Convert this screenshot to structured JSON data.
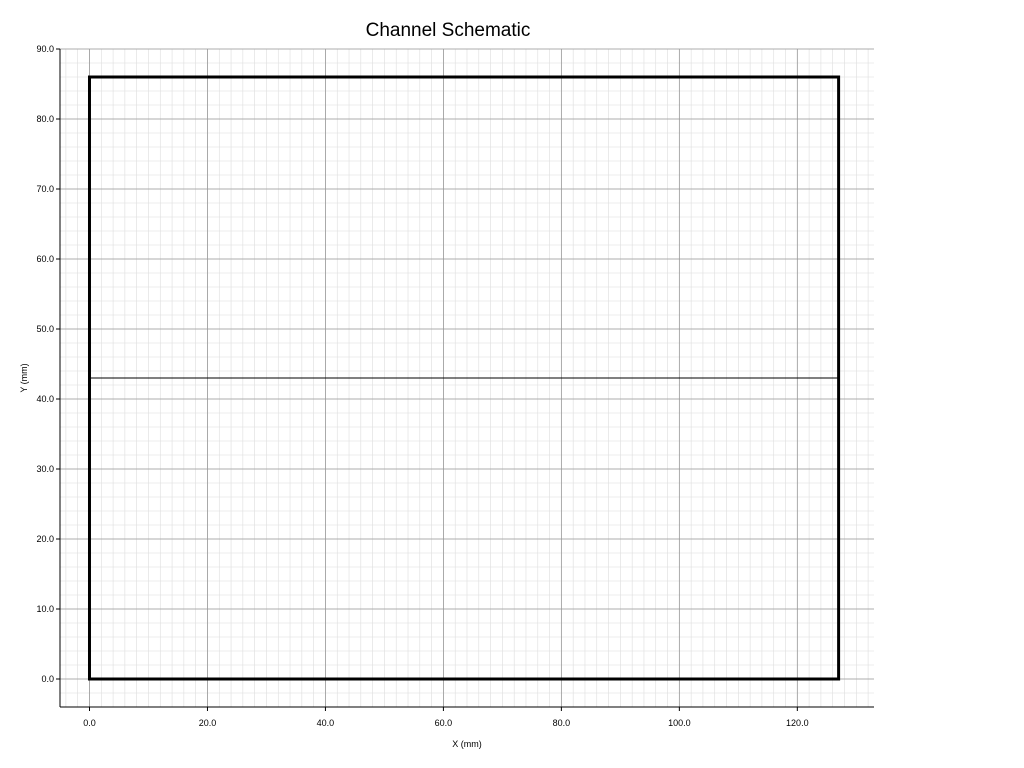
{
  "chart_data": {
    "type": "schematic",
    "title": "Channel Schematic",
    "xlabel": "X (mm)",
    "ylabel": "Y (mm)",
    "xlim": [
      -5.0,
      133.0
    ],
    "ylim": [
      -4.0,
      90.0
    ],
    "x_ticks": [
      "0.0",
      "20.0",
      "40.0",
      "60.0",
      "80.0",
      "100.0",
      "120.0"
    ],
    "y_ticks": [
      "0.0",
      "10.0",
      "20.0",
      "30.0",
      "40.0",
      "50.0",
      "60.0",
      "70.0",
      "80.0",
      "90.0"
    ],
    "grid": true,
    "minor_grid": true,
    "outline": {
      "x_min": 0.0,
      "x_max": 127.0,
      "y_min": 0.0,
      "y_max": 86.0
    },
    "channel_line_y": 43.0,
    "colors": {
      "outline": "#000000",
      "major_grid": "#999999",
      "minor_grid": "#dddddd"
    }
  }
}
